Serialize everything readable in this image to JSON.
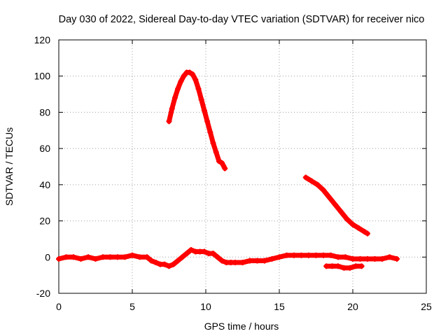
{
  "chart_data": {
    "type": "scatter",
    "title": "Day 030 of 2022, Sidereal Day-to-day VTEC variation (SDTVAR) for receiver nico",
    "xlabel": "GPS time / hours",
    "ylabel": "SDTVAR / TECUs",
    "xlim": [
      0,
      25
    ],
    "ylim": [
      -20,
      120
    ],
    "xticks": [
      0,
      5,
      10,
      15,
      20,
      25
    ],
    "yticks": [
      -20,
      0,
      20,
      40,
      60,
      80,
      100,
      120
    ],
    "xtick_labels": [
      "0",
      "5",
      "10",
      "15",
      "20",
      "25"
    ],
    "ytick_labels": [
      "-20",
      "0",
      "20",
      "40",
      "60",
      "80",
      "100",
      "120"
    ],
    "grid": true,
    "marker_color": "#ff0000",
    "series": [
      {
        "name": "baseline",
        "x": [
          0.0,
          0.5,
          1.0,
          1.5,
          2.0,
          2.5,
          3.0,
          3.5,
          4.0,
          4.5,
          5.0,
          5.5,
          6.0,
          6.3,
          6.6,
          6.9,
          7.2,
          7.5,
          7.8,
          8.1,
          8.4,
          8.7,
          9.0,
          9.3,
          9.6,
          9.9,
          10.2,
          10.5,
          10.8,
          11.1,
          11.4,
          11.7,
          12.0,
          12.5,
          13.0,
          13.5,
          14.0,
          14.5,
          15.0,
          15.5,
          16.0,
          16.5,
          17.0,
          17.5,
          18.0,
          18.5,
          19.0,
          19.5,
          20.0,
          20.5,
          21.0,
          21.5,
          22.0,
          22.5,
          23.0
        ],
        "y": [
          -1,
          0,
          0,
          -1,
          0,
          -1,
          0,
          0,
          0,
          0,
          1,
          0,
          0,
          -2,
          -3,
          -4,
          -4,
          -5,
          -4,
          -2,
          0,
          2,
          4,
          3,
          3,
          3,
          2,
          2,
          0,
          -2,
          -3,
          -3,
          -3,
          -3,
          -2,
          -2,
          -2,
          -1,
          0,
          1,
          1,
          1,
          1,
          1,
          1,
          1,
          0,
          0,
          -1,
          -1,
          -1,
          -1,
          -1,
          0,
          -1
        ]
      },
      {
        "name": "large_arc",
        "x": [
          7.5,
          7.7,
          7.9,
          8.1,
          8.3,
          8.5,
          8.7,
          8.9,
          9.1,
          9.3,
          9.5,
          9.7,
          9.9,
          10.1,
          10.3,
          10.5,
          10.7,
          10.9,
          11.1,
          11.3
        ],
        "y": [
          75,
          82,
          88,
          93,
          97,
          100,
          102,
          102,
          101,
          98,
          93,
          87,
          81,
          75,
          69,
          63,
          58,
          53,
          52,
          49
        ]
      },
      {
        "name": "descending_arc",
        "x": [
          16.8,
          17.2,
          17.6,
          18.0,
          18.4,
          18.8,
          19.2,
          19.6,
          20.0,
          20.4,
          20.8,
          21.0
        ],
        "y": [
          44,
          42,
          40,
          37,
          33,
          29,
          25,
          21,
          18,
          16,
          14,
          13
        ]
      },
      {
        "name": "lower_segment",
        "x": [
          18.2,
          18.6,
          19.0,
          19.4,
          19.8,
          20.2,
          20.6
        ],
        "y": [
          -5,
          -5,
          -5,
          -6,
          -6,
          -5,
          -5
        ]
      }
    ]
  }
}
